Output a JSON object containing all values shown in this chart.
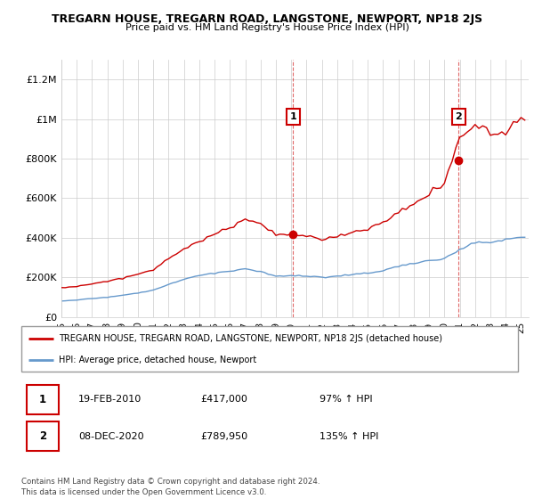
{
  "title": "TREGARN HOUSE, TREGARN ROAD, LANGSTONE, NEWPORT, NP18 2JS",
  "subtitle": "Price paid vs. HM Land Registry's House Price Index (HPI)",
  "ylabel_ticks": [
    "£0",
    "£200K",
    "£400K",
    "£600K",
    "£800K",
    "£1M",
    "£1.2M"
  ],
  "ytick_values": [
    0,
    200000,
    400000,
    600000,
    800000,
    1000000,
    1200000
  ],
  "ylim": [
    0,
    1300000
  ],
  "xlim_start": 1995.0,
  "xlim_end": 2025.5,
  "sale1_x": 2010.13,
  "sale1_y": 417000,
  "sale2_x": 2020.93,
  "sale2_y": 789950,
  "annotation1_label": "1",
  "annotation2_label": "2",
  "house_line_color": "#cc0000",
  "hpi_line_color": "#6699cc",
  "background_color": "#ffffff",
  "legend_house": "TREGARN HOUSE, TREGARN ROAD, LANGSTONE, NEWPORT, NP18 2JS (detached house)",
  "legend_hpi": "HPI: Average price, detached house, Newport",
  "table_row1": [
    "1",
    "19-FEB-2010",
    "£417,000",
    "97% ↑ HPI"
  ],
  "table_row2": [
    "2",
    "08-DEC-2020",
    "£789,950",
    "135% ↑ HPI"
  ],
  "footer": "Contains HM Land Registry data © Crown copyright and database right 2024.\nThis data is licensed under the Open Government Licence v3.0.",
  "grid_color": "#cccccc",
  "annotation_box_color": "#cc0000",
  "hpi_keypoints": {
    "1995": 80000,
    "1996": 85000,
    "1997": 93000,
    "1998": 100000,
    "1999": 110000,
    "2000": 120000,
    "2001": 135000,
    "2002": 165000,
    "2003": 190000,
    "2004": 210000,
    "2005": 220000,
    "2006": 230000,
    "2007": 240000,
    "2008": 230000,
    "2009": 205000,
    "2010": 210000,
    "2011": 205000,
    "2012": 200000,
    "2013": 205000,
    "2014": 215000,
    "2015": 220000,
    "2016": 235000,
    "2017": 255000,
    "2018": 270000,
    "2019": 285000,
    "2020": 295000,
    "2021": 340000,
    "2022": 380000,
    "2023": 375000,
    "2024": 390000,
    "2025": 400000
  },
  "house_keypoints": {
    "1995": 148000,
    "1996": 155000,
    "1997": 168000,
    "1998": 178000,
    "1999": 196000,
    "2000": 215000,
    "2001": 240000,
    "2002": 295000,
    "2003": 345000,
    "2004": 385000,
    "2005": 420000,
    "2006": 450000,
    "2007": 490000,
    "2008": 470000,
    "2009": 420000,
    "2010": 417000,
    "2011": 408000,
    "2012": 395000,
    "2013": 405000,
    "2014": 430000,
    "2015": 445000,
    "2016": 480000,
    "2017": 525000,
    "2018": 570000,
    "2019": 620000,
    "2020": 680000,
    "2021": 900000,
    "2022": 980000,
    "2023": 930000,
    "2024": 950000,
    "2025": 1000000
  }
}
